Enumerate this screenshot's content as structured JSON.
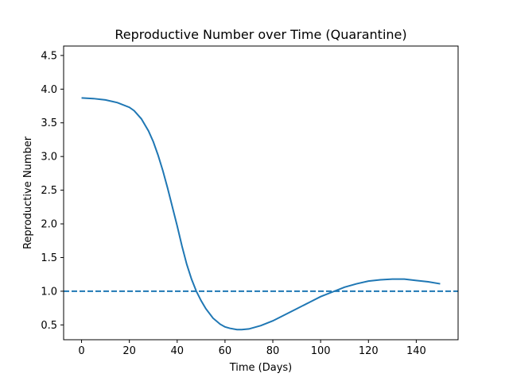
{
  "chart_data": {
    "type": "line",
    "title": "Reproductive Number over Time (Quarantine)",
    "xlabel": "Time (Days)",
    "ylabel": "Reproductive Number",
    "xlim": [
      -7.5,
      157.5
    ],
    "ylim": [
      0.28,
      4.64
    ],
    "xticks": [
      "0",
      "20",
      "40",
      "60",
      "80",
      "100",
      "120",
      "140"
    ],
    "yticks": [
      "0.5",
      "1.0",
      "1.5",
      "2.0",
      "2.5",
      "3.0",
      "3.5",
      "4.0",
      "4.5"
    ],
    "grid": false,
    "series": [
      {
        "color": "#1f77b4",
        "x": [
          0,
          5,
          10,
          15,
          20,
          22,
          25,
          28,
          30,
          32,
          34,
          36,
          38,
          40,
          42,
          44,
          46,
          48,
          50,
          52,
          55,
          58,
          60,
          62,
          65,
          67,
          70,
          75,
          80,
          85,
          90,
          95,
          100,
          105,
          110,
          115,
          120,
          125,
          130,
          133,
          135,
          140,
          145,
          150
        ],
        "y": [
          3.87,
          3.86,
          3.84,
          3.8,
          3.73,
          3.68,
          3.56,
          3.38,
          3.22,
          3.02,
          2.79,
          2.53,
          2.25,
          1.97,
          1.67,
          1.4,
          1.18,
          1.0,
          0.86,
          0.74,
          0.6,
          0.51,
          0.47,
          0.45,
          0.43,
          0.43,
          0.44,
          0.49,
          0.56,
          0.65,
          0.74,
          0.83,
          0.92,
          0.99,
          1.06,
          1.11,
          1.15,
          1.17,
          1.18,
          1.18,
          1.18,
          1.16,
          1.14,
          1.11
        ]
      },
      {
        "color": "#1f77b4",
        "style": "dashed",
        "x": [
          -7.5,
          157.5
        ],
        "y": [
          1.0,
          1.0
        ]
      }
    ]
  }
}
